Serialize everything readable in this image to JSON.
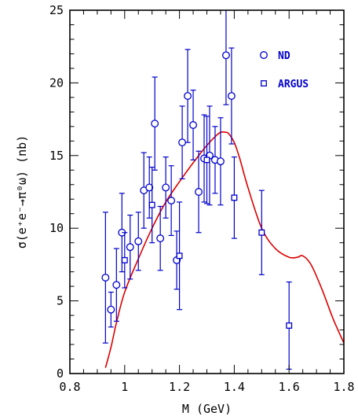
{
  "chart_data": {
    "type": "scatter",
    "xlabel": "M (GeV)",
    "ylabel": "σ(e⁺e⁻→π⁰ω) (nb)",
    "xlim": [
      0.8,
      1.8
    ],
    "ylim": [
      0,
      25
    ],
    "x_ticks": [
      0.8,
      1.0,
      1.2,
      1.4,
      1.6,
      1.8
    ],
    "x_tick_labels": [
      "0.8",
      "1",
      "1.2",
      "1.4",
      "1.6",
      "1.8"
    ],
    "y_ticks": [
      0,
      5,
      10,
      15,
      20,
      25
    ],
    "y_tick_labels": [
      "0",
      "5",
      "10",
      "15",
      "20",
      "25"
    ],
    "grid": false,
    "legend_position": "top-right",
    "colors": {
      "data": "#0000cc",
      "fit": "#dd0000",
      "axes": "#000000"
    },
    "series": [
      {
        "name": "ND",
        "marker": "circle",
        "points": [
          {
            "x": 0.93,
            "y": 6.6,
            "err": 4.5
          },
          {
            "x": 0.95,
            "y": 4.4,
            "err": 1.2
          },
          {
            "x": 0.97,
            "y": 6.1,
            "err": 2.5
          },
          {
            "x": 0.99,
            "y": 9.7,
            "err": 2.7
          },
          {
            "x": 1.02,
            "y": 8.7,
            "err": 2.2
          },
          {
            "x": 1.05,
            "y": 9.1,
            "err": 2.0
          },
          {
            "x": 1.07,
            "y": 12.6,
            "err": 2.6
          },
          {
            "x": 1.09,
            "y": 12.8,
            "err": 2.1
          },
          {
            "x": 1.11,
            "y": 17.2,
            "err": 3.2
          },
          {
            "x": 1.13,
            "y": 9.3,
            "err": 2.2
          },
          {
            "x": 1.15,
            "y": 12.8,
            "err": 2.1
          },
          {
            "x": 1.17,
            "y": 11.9,
            "err": 2.4
          },
          {
            "x": 1.19,
            "y": 7.8,
            "err": 2.0
          },
          {
            "x": 1.21,
            "y": 15.9,
            "err": 2.5
          },
          {
            "x": 1.23,
            "y": 19.1,
            "err": 3.2
          },
          {
            "x": 1.25,
            "y": 17.1,
            "err": 2.4
          },
          {
            "x": 1.27,
            "y": 12.5,
            "err": 2.8
          },
          {
            "x": 1.29,
            "y": 14.8,
            "err": 3.0
          },
          {
            "x": 1.31,
            "y": 15.0,
            "err": 3.4
          },
          {
            "x": 1.33,
            "y": 14.7,
            "err": 2.3
          },
          {
            "x": 1.35,
            "y": 14.6,
            "err": 3.0
          },
          {
            "x": 1.37,
            "y": 21.9,
            "err": 3.4
          },
          {
            "x": 1.39,
            "y": 19.1,
            "err": 3.3
          }
        ]
      },
      {
        "name": "ARGUS",
        "marker": "square",
        "points": [
          {
            "x": 1.0,
            "y": 7.8,
            "err": 1.9
          },
          {
            "x": 1.1,
            "y": 11.6,
            "err": 2.6
          },
          {
            "x": 1.2,
            "y": 8.1,
            "err": 3.7
          },
          {
            "x": 1.3,
            "y": 14.7,
            "err": 3.0
          },
          {
            "x": 1.4,
            "y": 12.1,
            "err": 2.8
          },
          {
            "x": 1.5,
            "y": 9.7,
            "err": 2.9
          },
          {
            "x": 1.6,
            "y": 3.3,
            "err": 3.0
          }
        ]
      }
    ],
    "fit_curve": {
      "x": [
        0.93,
        0.95,
        0.97,
        1.0,
        1.05,
        1.1,
        1.15,
        1.2,
        1.25,
        1.3,
        1.33,
        1.35,
        1.37,
        1.38,
        1.4,
        1.42,
        1.45,
        1.5,
        1.55,
        1.6,
        1.63,
        1.65,
        1.68,
        1.72,
        1.76,
        1.8
      ],
      "y": [
        0.4,
        1.8,
        3.5,
        5.6,
        7.9,
        10.0,
        11.8,
        13.2,
        14.5,
        15.7,
        16.3,
        16.6,
        16.6,
        16.5,
        15.9,
        14.8,
        12.8,
        10.0,
        8.6,
        8.0,
        8.0,
        8.1,
        7.5,
        5.8,
        3.8,
        2.1
      ]
    }
  }
}
